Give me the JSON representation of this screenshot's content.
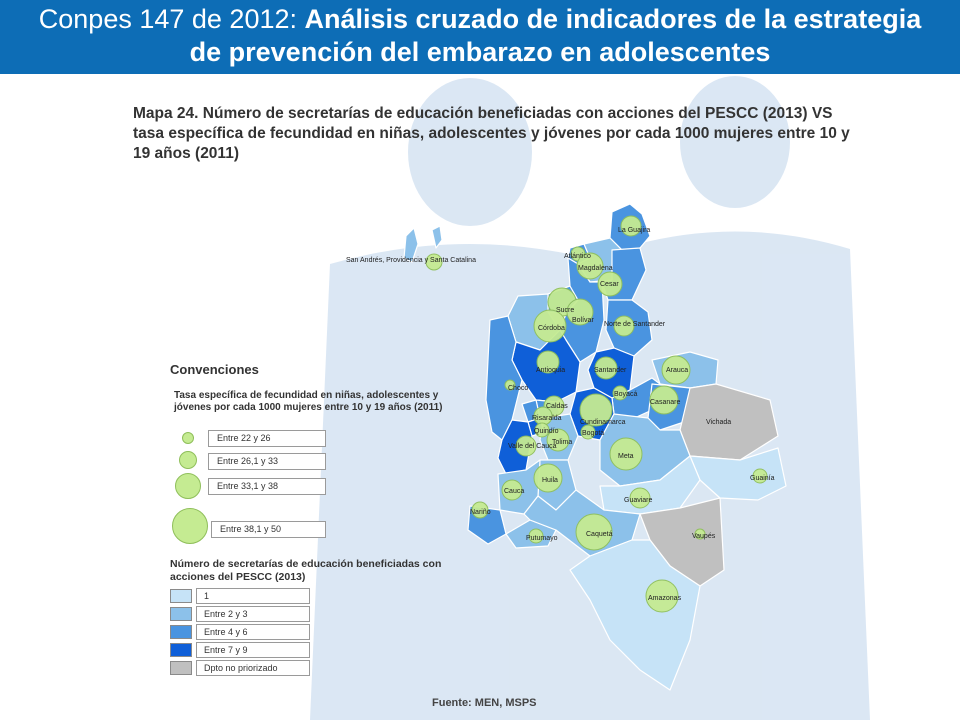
{
  "header": {
    "prefix": "Conpes 147 de 2012: ",
    "title_line1": "Análisis cruzado de indicadores de la estrategia",
    "title_line2": "de prevención del embarazo en adolescentes"
  },
  "map_title": "Mapa 24. Número de secretarías de educación beneficiadas con acciones del PESCC (2013) VS tasa específica de fecundidad en niñas, adolescentes y jóvenes por cada 1000 mujeres entre 10 y 19 años (2011)",
  "legend": {
    "heading": "Convenciones",
    "rate_heading_1": "Tasa específica de fecundidad en niñas, adolescentes y",
    "rate_heading_2": "jóvenes por cada 1000 mujeres entre 10 y 19 años (2011)",
    "rate_classes": [
      "Entre 22 y 26",
      "Entre 26,1 y 33",
      "Entre 33,1 y 38",
      "Entre 38,1 y 50"
    ],
    "count_heading_1": "Número de secretarías de educación beneficiadas con",
    "count_heading_2": "acciones del PESCC (2013)",
    "count_classes": [
      "1",
      "Entre 2 y 3",
      "Entre 4 y 6",
      "Entre 7 y 9",
      "Dpto no priorizado"
    ],
    "count_colors": [
      "#c6e3f7",
      "#8cc1ea",
      "#4a94e0",
      "#0f5fd8",
      "#c0c0c0"
    ],
    "circle_color": "#c5eb92"
  },
  "departments": [
    "San Andrés, Providencia y Santa Catalina",
    "La Guajira",
    "Atlántico",
    "Magdalena",
    "Cesar",
    "Sucre",
    "Córdoba",
    "Bolívar",
    "Norte de Santander",
    "Antioquia",
    "Santander",
    "Arauca",
    "Chocó",
    "Boyacá",
    "Casanare",
    "Caldas",
    "Risaralda",
    "Cundinamarca",
    "Quindío",
    "Tolima",
    "Bogotá",
    "Vichada",
    "Valle del Cauca",
    "Meta",
    "Huila",
    "Cauca",
    "Guainía",
    "Guaviare",
    "Nariño",
    "Putumayo",
    "Caquetá",
    "Vaupés",
    "Amazonas"
  ],
  "dept_labels": {
    "san_andres": "San Andrés, Providencia y Santa Catalina",
    "guajira": "La Guajira",
    "atlantico": "Atlántico",
    "magdalena": "Magdalena",
    "cesar": "Cesar",
    "sucre": "Sucre",
    "cordoba": "Córdoba",
    "bolivar": "Bolívar",
    "norte_santander": "Norte de Santander",
    "antioquia": "Antioquia",
    "santander": "Santander",
    "arauca": "Arauca",
    "choco": "Chocó",
    "boyaca": "Boyacá",
    "casanare": "Casanare",
    "caldas": "Caldas",
    "risaralda": "Risaralda",
    "cundinamarca": "Cundinamarca",
    "quindio": "Quindío",
    "tolima": "Tolima",
    "bogota": "Bogotá",
    "vichada": "Vichada",
    "valle": "Valle del Cauca",
    "meta": "Meta",
    "huila": "Huila",
    "cauca": "Cauca",
    "guainia": "Guainía",
    "guaviare": "Guaviare",
    "narino": "Nariño",
    "putumayo": "Putumayo",
    "caqueta": "Caquetá",
    "vaupes": "Vaupés",
    "amazonas": "Amazonas"
  },
  "source": "Fuente: MEN, MSPS"
}
